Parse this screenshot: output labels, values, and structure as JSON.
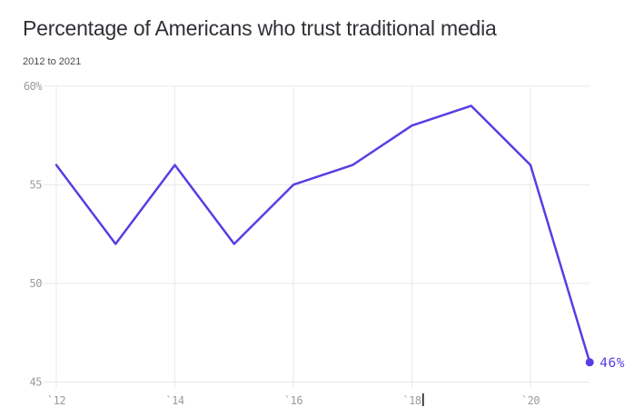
{
  "chart_data": {
    "type": "line",
    "title": "Percentage of Americans who trust traditional media",
    "subtitle": "2012 to 2021",
    "x": [
      2012,
      2013,
      2014,
      2015,
      2016,
      2017,
      2018,
      2019,
      2020,
      2021
    ],
    "values": [
      56,
      52,
      56,
      52,
      55,
      56,
      58,
      59,
      56,
      46
    ],
    "end_label": "46%",
    "x_ticks": [
      {
        "value": 2012,
        "label": "`12"
      },
      {
        "value": 2014,
        "label": "`14"
      },
      {
        "value": 2016,
        "label": "`16"
      },
      {
        "value": 2018,
        "label": "`18"
      },
      {
        "value": 2020,
        "label": "`20"
      }
    ],
    "y_ticks": [
      {
        "value": 60,
        "label": "60%"
      },
      {
        "value": 55,
        "label": "55"
      },
      {
        "value": 50,
        "label": "50"
      },
      {
        "value": 45,
        "label": "45"
      }
    ],
    "ylim": [
      45,
      60
    ],
    "xlim": [
      2012,
      2021
    ],
    "grid": true,
    "legend": "none",
    "colors": {
      "line": "#5b3ce4",
      "end_point": "#5b3ce4",
      "end_label": "#5b3ce4",
      "grid": "#e9e9e9",
      "tick_label": "#9b9b9b",
      "title": "#2f3136",
      "subtitle": "#47494e",
      "text_cursor": "#1f1f1f",
      "background": "#ffffff"
    },
    "annotations": {
      "text_cursor_after_tick": "`18"
    }
  }
}
